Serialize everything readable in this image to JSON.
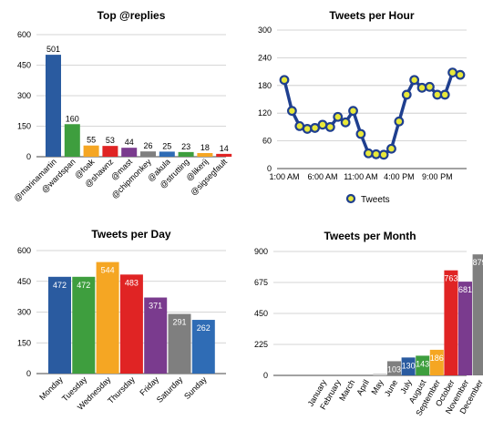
{
  "chart_data": [
    {
      "id": "replies",
      "type": "bar",
      "title": "Top @replies",
      "categories": [
        "@marinamartin",
        "@wardspan",
        "@foak",
        "@shawnz",
        "@mast",
        "@chipmonkey",
        "@akula",
        "@strutting",
        "@likerij",
        "@sigsegfault"
      ],
      "values": [
        501,
        160,
        55,
        53,
        44,
        26,
        25,
        23,
        18,
        14
      ],
      "colors": [
        "#2a5ba0",
        "#3e9e3e",
        "#f5a623",
        "#e02424",
        "#7a3b8e",
        "#7f7f7f",
        "#2f6cb5",
        "#3e9e3e",
        "#f5a623",
        "#e02424"
      ],
      "ylim": [
        0,
        600
      ],
      "yticks": [
        0,
        150,
        300,
        450,
        600
      ],
      "grid": true,
      "label_position": "above"
    },
    {
      "id": "hour",
      "type": "line",
      "title": "Tweets per Hour",
      "x": [
        0,
        1,
        2,
        3,
        4,
        5,
        6,
        7,
        8,
        9,
        10,
        11,
        12,
        13,
        14,
        15,
        16,
        17,
        18,
        19,
        20,
        21,
        22,
        23
      ],
      "xtick_labels": [
        "1:00 AM",
        "6:00 AM",
        "11:00 AM",
        "4:00 PM",
        "9:00 PM"
      ],
      "xtick_positions": [
        0,
        5,
        10,
        15,
        20
      ],
      "series": [
        {
          "name": "Tweets",
          "color": "#1f3f8f",
          "marker_fill": "#e8e83a",
          "values": [
            192,
            125,
            92,
            86,
            88,
            95,
            90,
            112,
            100,
            125,
            75,
            33,
            31,
            30,
            43,
            102,
            160,
            192,
            175,
            177,
            160,
            160,
            208,
            203
          ]
        }
      ],
      "ylim": [
        0,
        300
      ],
      "yticks": [
        0,
        60,
        120,
        180,
        240,
        300
      ],
      "grid": true,
      "legend": "bottom"
    },
    {
      "id": "day",
      "type": "bar",
      "title": "Tweets per Day",
      "categories": [
        "Monday",
        "Tuesday",
        "Wednesday",
        "Thursday",
        "Friday",
        "Saturday",
        "Sunday"
      ],
      "values": [
        472,
        472,
        544,
        483,
        371,
        291,
        262
      ],
      "colors": [
        "#2a5ba0",
        "#3e9e3e",
        "#f5a623",
        "#e02424",
        "#7a3b8e",
        "#7f7f7f",
        "#2f6cb5"
      ],
      "ylim": [
        0,
        600
      ],
      "yticks": [
        0,
        150,
        300,
        450,
        600
      ],
      "grid": true,
      "label_position": "inside"
    },
    {
      "id": "month",
      "type": "bar",
      "title": "Tweets per Month",
      "categories": [
        "January",
        "February",
        "March",
        "April",
        "May",
        "June",
        "July",
        "August",
        "September",
        "October",
        "November",
        "December"
      ],
      "values": [
        0,
        0,
        0,
        0,
        14,
        103,
        130,
        143,
        186,
        763,
        681,
        879
      ],
      "value_labels": [
        "",
        "",
        "",
        "",
        "",
        "103",
        "130",
        "143",
        "186",
        "763",
        "681",
        "879"
      ],
      "colors": [
        "#2a5ba0",
        "#3e9e3e",
        "#f5a623",
        "#e02424",
        "#d0d0d0",
        "#7f7f7f",
        "#2a5ba0",
        "#3e9e3e",
        "#f5a623",
        "#e02424",
        "#7a3b8e",
        "#7f7f7f"
      ],
      "ylim": [
        0,
        900
      ],
      "yticks": [
        0,
        225,
        450,
        675,
        900
      ],
      "grid": true,
      "label_position": "inside"
    }
  ]
}
